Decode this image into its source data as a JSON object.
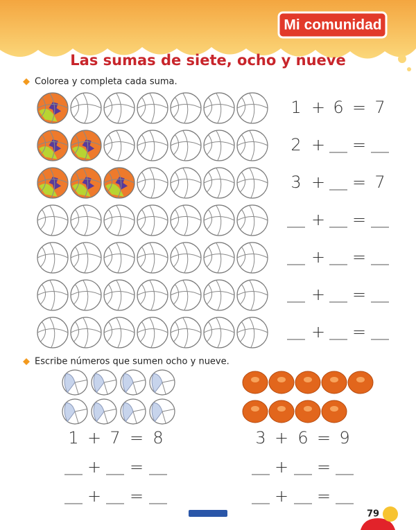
{
  "header": {
    "badge": "Mi comunidad",
    "title": "Las sumas de siete, ocho y nueve"
  },
  "symbols": {
    "plus": "+",
    "equals": "="
  },
  "section1": {
    "instruction": "Colorea y completa cada suma.",
    "rows": [
      {
        "balls": 7,
        "colored": 1,
        "equation": [
          1,
          6,
          7
        ]
      },
      {
        "balls": 7,
        "colored": 2,
        "equation": [
          2,
          null,
          null
        ]
      },
      {
        "balls": 7,
        "colored": 3,
        "equation": [
          3,
          null,
          7
        ]
      },
      {
        "balls": 7,
        "colored": 0,
        "equation": [
          null,
          null,
          null
        ]
      },
      {
        "balls": 7,
        "colored": 0,
        "equation": [
          null,
          null,
          null
        ]
      },
      {
        "balls": 7,
        "colored": 0,
        "equation": [
          null,
          null,
          null
        ]
      },
      {
        "balls": 7,
        "colored": 0,
        "equation": [
          null,
          null,
          null
        ]
      }
    ]
  },
  "section2": {
    "instruction": "Escribe números que sumen ocho y nueve.",
    "left": {
      "items": [
        4,
        4
      ],
      "equations": [
        [
          1,
          7,
          8
        ],
        [
          null,
          null,
          null
        ],
        [
          null,
          null,
          null
        ]
      ]
    },
    "right": {
      "items": [
        5,
        4
      ],
      "equations": [
        [
          3,
          6,
          9
        ],
        [
          null,
          null,
          null
        ],
        [
          null,
          null,
          null
        ]
      ]
    }
  },
  "footer": {
    "page_number": "79"
  }
}
